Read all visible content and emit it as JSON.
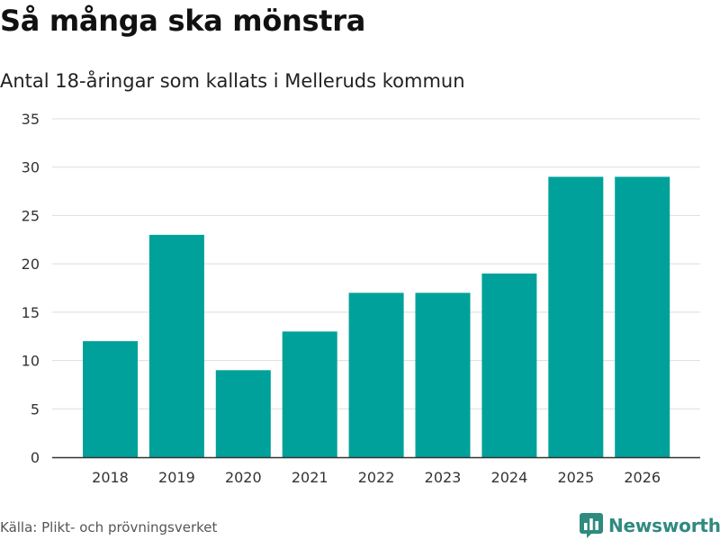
{
  "header": {
    "title": "Så många ska mönstra",
    "subtitle": "Antal 18-åringar som kallats i Melleruds kommun"
  },
  "footer": {
    "source": "Källa: Plikt- och prövningsverket",
    "brand": "Newsworthy"
  },
  "colors": {
    "bar": "#00a19a",
    "grid": "#dddddd",
    "axis": "#333333",
    "brand": "#2f8a7f"
  },
  "chart_data": {
    "type": "bar",
    "title": "Så många ska mönstra",
    "subtitle": "Antal 18-åringar som kallats i Melleruds kommun",
    "categories": [
      "2018",
      "2019",
      "2020",
      "2021",
      "2022",
      "2023",
      "2024",
      "2025",
      "2026"
    ],
    "values": [
      12,
      23,
      9,
      13,
      17,
      17,
      19,
      29,
      29
    ],
    "xlabel": "",
    "ylabel": "",
    "ylim": [
      0,
      35
    ],
    "yticks": [
      "0",
      "5",
      "10",
      "15",
      "20",
      "25",
      "30",
      "35"
    ],
    "grid": true,
    "legend": "none"
  }
}
